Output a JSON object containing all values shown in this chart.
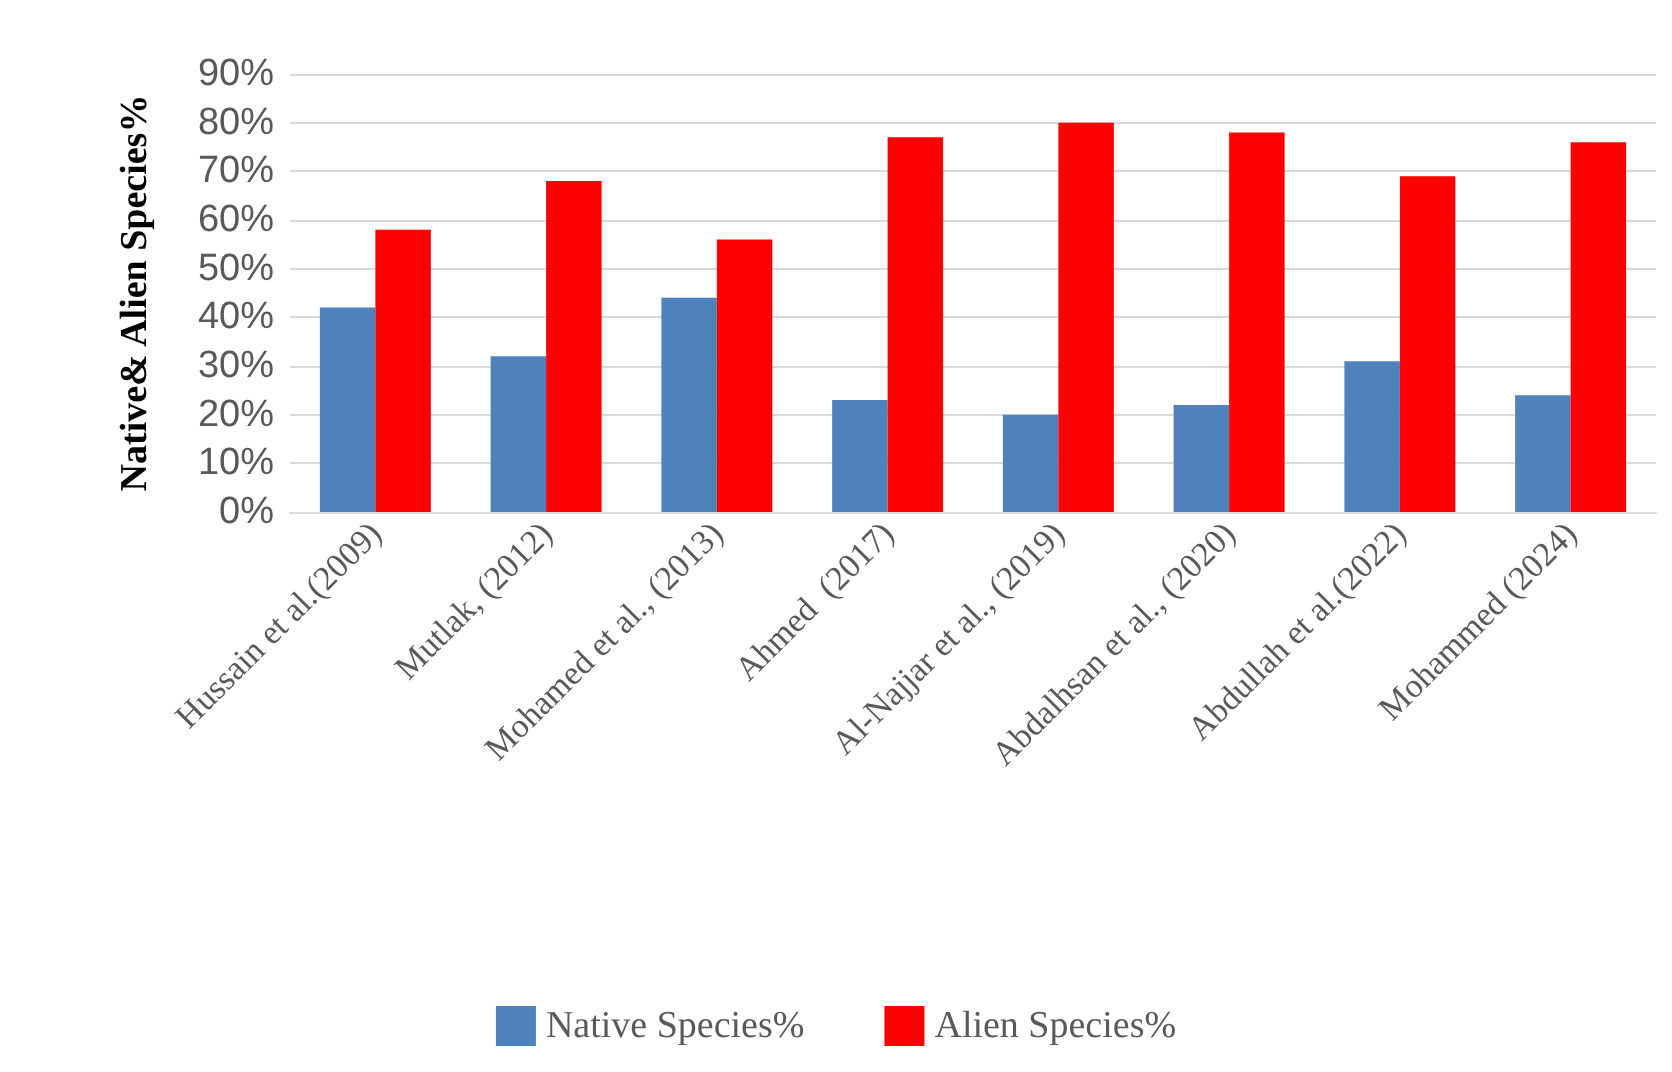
{
  "chart_data": {
    "type": "bar",
    "ylabel": "Native& Alien Species%",
    "categories": [
      "Hussain et al.(2009)",
      "Mutlak, (2012)",
      "Mohamed et al., (2013)",
      "Ahmed  (2017)",
      "Al-Najjar et al., (2019)",
      "Abdalhsan et al., (2020)",
      "Abdullah et al.(2022)",
      "Mohammed (2024)"
    ],
    "series": [
      {
        "name": "Native Species%",
        "color": "#4f81bd",
        "values": [
          42,
          32,
          44,
          23,
          20,
          22,
          31,
          24
        ]
      },
      {
        "name": "Alien Species%",
        "color": "#ff0000",
        "values": [
          58,
          68,
          56,
          77,
          80,
          78,
          69,
          76
        ]
      }
    ],
    "ylim": [
      0,
      90
    ],
    "yticks": [
      {
        "value": 0,
        "label": "0%"
      },
      {
        "value": 10,
        "label": "10%"
      },
      {
        "value": 20,
        "label": "20%"
      },
      {
        "value": 30,
        "label": "30%"
      },
      {
        "value": 40,
        "label": "40%"
      },
      {
        "value": 50,
        "label": "50%"
      },
      {
        "value": 60,
        "label": "60%"
      },
      {
        "value": 70,
        "label": "70%"
      },
      {
        "value": 80,
        "label": "80%"
      },
      {
        "value": 90,
        "label": "90%"
      }
    ],
    "grid": "y",
    "legend": "bottom"
  }
}
